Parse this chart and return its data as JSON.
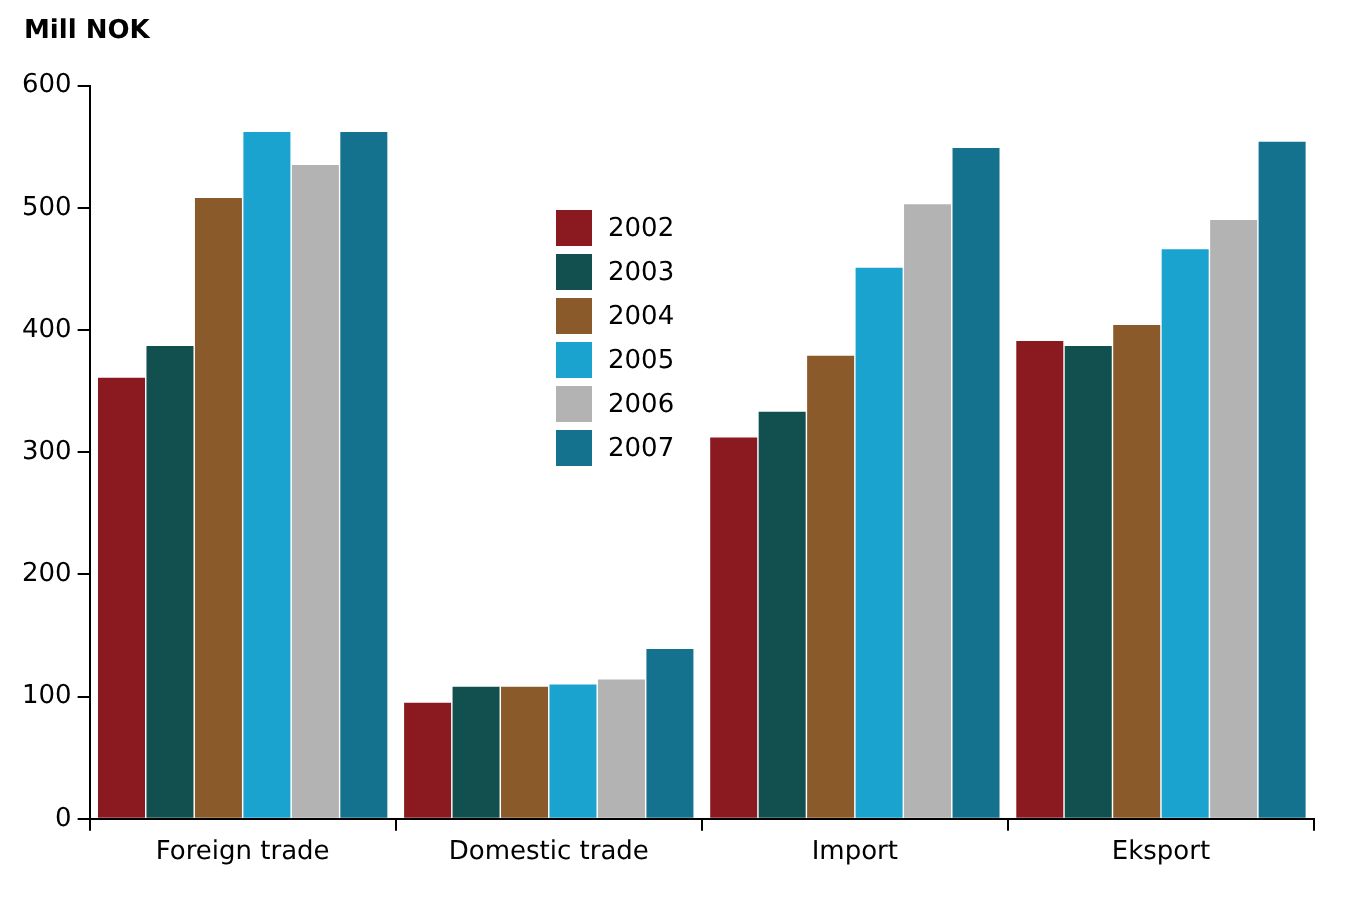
{
  "chart_data": {
    "type": "bar",
    "ylabel": "Mill NOK",
    "categories": [
      "Foreign trade",
      "Domestic trade",
      "Import",
      "Eksport"
    ],
    "series": [
      {
        "name": "2002",
        "color": "#8b1a20",
        "values": [
          361,
          95,
          312,
          391
        ]
      },
      {
        "name": "2003",
        "color": "#124f4f",
        "values": [
          387,
          108,
          333,
          387
        ]
      },
      {
        "name": "2004",
        "color": "#8b5a2b",
        "values": [
          508,
          108,
          379,
          404
        ]
      },
      {
        "name": "2005",
        "color": "#1aa3cf",
        "values": [
          562,
          110,
          451,
          466
        ]
      },
      {
        "name": "2006",
        "color": "#b3b3b3",
        "values": [
          535,
          114,
          503,
          490
        ]
      },
      {
        "name": "2007",
        "color": "#14728f",
        "values": [
          562,
          139,
          549,
          554
        ]
      }
    ],
    "ylim": [
      0,
      600
    ],
    "yticks": [
      0,
      100,
      200,
      300,
      400,
      500,
      600
    ],
    "grid": false,
    "legend": "top"
  }
}
